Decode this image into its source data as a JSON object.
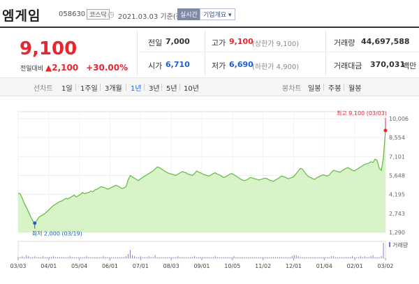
{
  "header": {
    "name": "엠게임",
    "code": "058630",
    "market": "코스닥",
    "date": "2021.03.03 기준(장마감)",
    "realtime": "실시간",
    "corp_info": "기업개요 ▾"
  },
  "quote": {
    "price": "9,100",
    "change_label": "전일대비",
    "change_arrow": "▲",
    "change_amount": "2,100",
    "change_pct": "+30.00%",
    "prev_close_label": "전일",
    "prev_close": "7,000",
    "high_label": "고가",
    "high": "9,100",
    "high_note": "(상한가 9,100)",
    "volume_label": "거래량",
    "volume": "44,697,588",
    "open_label": "시가",
    "open": "6,710",
    "low_label": "저가",
    "low": "6,690",
    "low_note": "(하한가 4,900)",
    "amount_label": "거래대금",
    "amount": "370,031",
    "amount_unit": "백만"
  },
  "tabs": {
    "line_label": "선차트",
    "line_periods": [
      "1일",
      "1주일",
      "3개월",
      "1년",
      "3년",
      "5년",
      "10년"
    ],
    "selected": "1년",
    "candle_label": "봉차트",
    "candle_periods": [
      "일봉",
      "주봉",
      "월봉"
    ]
  },
  "chart_data": {
    "type": "area",
    "y_ticks": [
      "10,006",
      "8,554",
      "7,101",
      "5,648",
      "4,195",
      "2,743",
      "1,290"
    ],
    "ylim": [
      1290,
      10006
    ],
    "x_ticks": [
      "03/03",
      "04/01",
      "05/04",
      "06/01",
      "07/01",
      "08/03",
      "09/01",
      "10/05",
      "11/02",
      "12/01",
      "01/04",
      "02/01",
      "03/02"
    ],
    "max_label": "최고 9,100 (03/03)",
    "min_label": "최저 2,000 (03/19)",
    "volume_legend": "거래량",
    "series": [
      {
        "values": [
          4300,
          4250,
          3900,
          3500,
          3200,
          2850,
          2500,
          2200,
          2000,
          2200,
          2450,
          2550,
          2650,
          2750,
          2900,
          3050,
          3200,
          3350,
          3450,
          3550,
          3650,
          3700,
          3800,
          3900,
          3850,
          3950,
          4050,
          4150,
          4000,
          4100,
          4200,
          4350,
          4250,
          4300,
          4350,
          4450,
          4400,
          4550,
          4600,
          4700,
          4800,
          4750,
          4700,
          4600,
          4650,
          4750,
          4800,
          4900,
          4850,
          4750,
          4650,
          4700,
          4800,
          5300,
          5650,
          5550,
          5450,
          5350,
          5250,
          5400,
          5500,
          5600,
          5700,
          5800,
          5900,
          6000,
          6150,
          6300,
          6250,
          6150,
          6050,
          5950,
          5850,
          5800,
          5750,
          5700,
          5650,
          5750,
          5850,
          5950,
          5900,
          5850,
          5750,
          5700,
          5650,
          5800,
          6000,
          5900,
          5850,
          5750,
          5700,
          5650,
          5600,
          5700,
          5800,
          5850,
          5750,
          5700,
          5600,
          5500,
          5550,
          5650,
          5750,
          5800,
          5700,
          5600,
          5500,
          5400,
          5300,
          5250,
          5300,
          5400,
          5500,
          5450,
          5400,
          5350,
          5300,
          5350,
          5400,
          5450,
          5400,
          5300,
          5250,
          5200,
          5300,
          5400,
          5500,
          5600,
          5550,
          5500,
          5400,
          5450,
          5500,
          5600,
          5800,
          6000,
          6200,
          6150,
          5900,
          5700,
          5550,
          5500,
          5400,
          5350,
          5500,
          5550,
          5650,
          5700,
          5650,
          5600,
          5700,
          5900,
          6050,
          6000,
          5950,
          5900,
          6000,
          6100,
          6200,
          6250,
          6150,
          6050,
          6000,
          6100,
          6200,
          6300,
          6400,
          6500,
          6550,
          6600,
          6700,
          6650,
          6900,
          6800,
          6200,
          6050,
          7000,
          9100
        ]
      }
    ],
    "volume": [
      1,
      1,
      2,
      1,
      3,
      2,
      1,
      1,
      2,
      1,
      1,
      1,
      2,
      1,
      1,
      1,
      1,
      2,
      1,
      1,
      1,
      1,
      1,
      1,
      1,
      2,
      1,
      1,
      1,
      1,
      1,
      1,
      1,
      2,
      1,
      1,
      1,
      1,
      1,
      1,
      1,
      2,
      1,
      1,
      1,
      1,
      1,
      1,
      1,
      1,
      1,
      1,
      2,
      4,
      8,
      3,
      2,
      1,
      1,
      2,
      1,
      1,
      1,
      2,
      1,
      1,
      3,
      1,
      1,
      1,
      1,
      1,
      1,
      1,
      1,
      1,
      1,
      2,
      1,
      1,
      1,
      1,
      1,
      1,
      1,
      2,
      1,
      1,
      1,
      1,
      1,
      1,
      1,
      1,
      1,
      2,
      1,
      1,
      1,
      1,
      1,
      1,
      1,
      1,
      2,
      1,
      1,
      1,
      1,
      1,
      1,
      1,
      1,
      1,
      1,
      1,
      1,
      1,
      1,
      1,
      1,
      1,
      1,
      1,
      1,
      1,
      1,
      1,
      1,
      1,
      1,
      1,
      2,
      3,
      3,
      2,
      1,
      1,
      1,
      1,
      1,
      1,
      1,
      1,
      1,
      1,
      1,
      1,
      1,
      1,
      1,
      2,
      2,
      1,
      1,
      1,
      1,
      1,
      1,
      1,
      1,
      2,
      1,
      1,
      1,
      2,
      1,
      2,
      1,
      1,
      2,
      3,
      1,
      1,
      1,
      2,
      15
    ]
  }
}
